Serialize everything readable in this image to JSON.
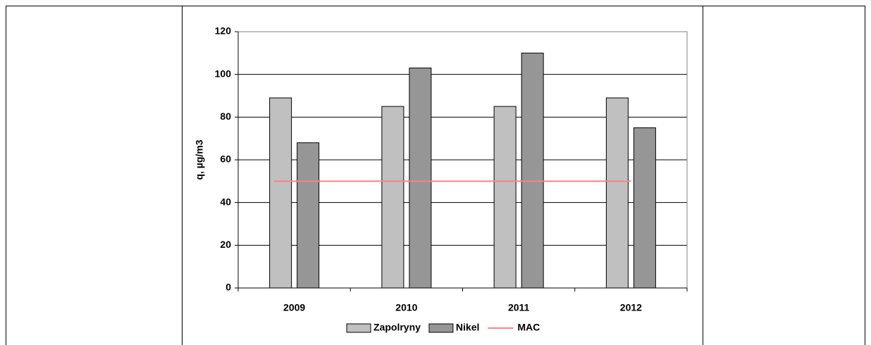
{
  "chart_data": {
    "type": "bar",
    "y_label": "q, µg/m3",
    "categories": [
      "2009",
      "2010",
      "2011",
      "2012"
    ],
    "series": [
      {
        "name": "Zapolryny",
        "color": "#c0c0c0",
        "values": [
          89,
          85,
          85,
          89
        ]
      },
      {
        "name": "Nikel",
        "color": "#969696",
        "values": [
          68,
          103,
          110,
          75
        ]
      },
      {
        "name": "MAC",
        "color": "#ff8080",
        "type": "line",
        "values": [
          50,
          50,
          50,
          50
        ]
      }
    ],
    "ylim": [
      0,
      120
    ],
    "yticks": [
      0,
      20,
      40,
      60,
      80,
      100,
      120
    ],
    "grid": true
  }
}
